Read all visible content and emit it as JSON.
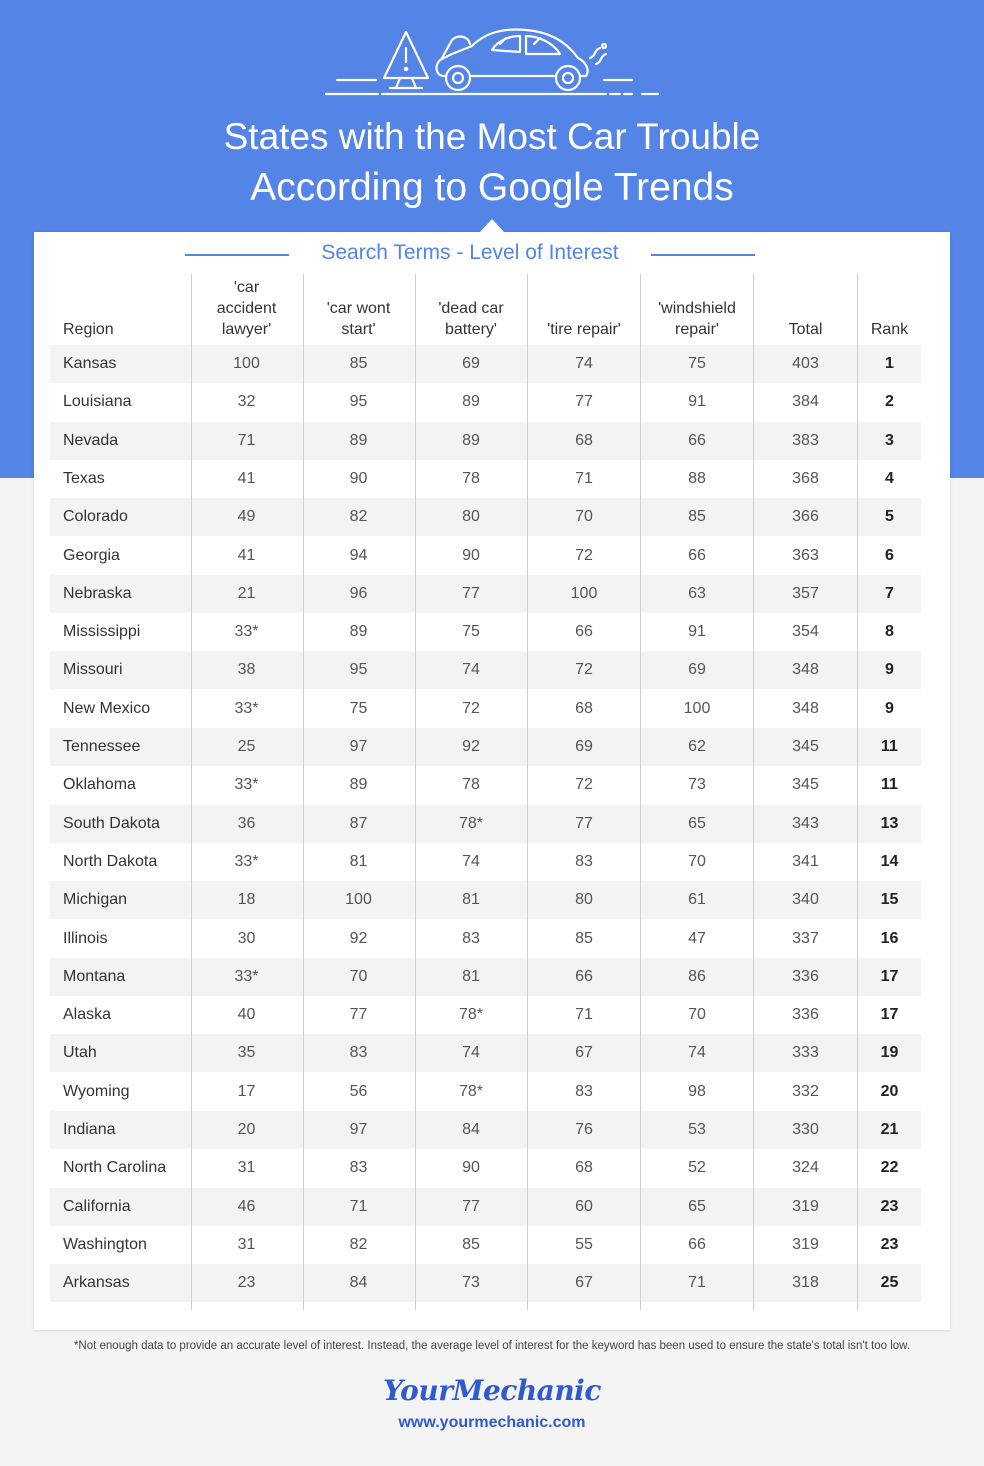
{
  "title": {
    "line1": "States with the Most Car Trouble",
    "line2": "According to Google Trends"
  },
  "illustration": {
    "icon": "broken-down-car-with-warning-triangle"
  },
  "colors": {
    "accent": "#5384e6",
    "logo": "#2f5bcc",
    "row_shade": "#f3f3f3",
    "background": "#f4f4f4"
  },
  "table": {
    "group_label": "Search Terms - Level of Interest",
    "headers": {
      "region": "Region",
      "car_accident_lawyer": [
        "'car",
        "accident",
        "lawyer'"
      ],
      "car_wont_start": [
        "'car wont",
        "start'"
      ],
      "dead_car_battery": [
        "'dead car",
        "battery'"
      ],
      "tire_repair": [
        "'tire repair'"
      ],
      "windshield_repair": [
        "'windshield",
        "repair'"
      ],
      "total": "Total",
      "rank": "Rank"
    },
    "rows": [
      [
        "Kansas",
        "100",
        "85",
        "69",
        "74",
        "75",
        "403",
        "1"
      ],
      [
        "Louisiana",
        "32",
        "95",
        "89",
        "77",
        "91",
        "384",
        "2"
      ],
      [
        "Nevada",
        "71",
        "89",
        "89",
        "68",
        "66",
        "383",
        "3"
      ],
      [
        "Texas",
        "41",
        "90",
        "78",
        "71",
        "88",
        "368",
        "4"
      ],
      [
        "Colorado",
        "49",
        "82",
        "80",
        "70",
        "85",
        "366",
        "5"
      ],
      [
        "Georgia",
        "41",
        "94",
        "90",
        "72",
        "66",
        "363",
        "6"
      ],
      [
        "Nebraska",
        "21",
        "96",
        "77",
        "100",
        "63",
        "357",
        "7"
      ],
      [
        "Mississippi",
        "33*",
        "89",
        "75",
        "66",
        "91",
        "354",
        "8"
      ],
      [
        "Missouri",
        "38",
        "95",
        "74",
        "72",
        "69",
        "348",
        "9"
      ],
      [
        "New Mexico",
        "33*",
        "75",
        "72",
        "68",
        "100",
        "348",
        "9"
      ],
      [
        "Tennessee",
        "25",
        "97",
        "92",
        "69",
        "62",
        "345",
        "11"
      ],
      [
        "Oklahoma",
        "33*",
        "89",
        "78",
        "72",
        "73",
        "345",
        "11"
      ],
      [
        "South Dakota",
        "36",
        "87",
        "78*",
        "77",
        "65",
        "343",
        "13"
      ],
      [
        "North Dakota",
        "33*",
        "81",
        "74",
        "83",
        "70",
        "341",
        "14"
      ],
      [
        "Michigan",
        "18",
        "100",
        "81",
        "80",
        "61",
        "340",
        "15"
      ],
      [
        "Illinois",
        "30",
        "92",
        "83",
        "85",
        "47",
        "337",
        "16"
      ],
      [
        "Montana",
        "33*",
        "70",
        "81",
        "66",
        "86",
        "336",
        "17"
      ],
      [
        "Alaska",
        "40",
        "77",
        "78*",
        "71",
        "70",
        "336",
        "17"
      ],
      [
        "Utah",
        "35",
        "83",
        "74",
        "67",
        "74",
        "333",
        "19"
      ],
      [
        "Wyoming",
        "17",
        "56",
        "78*",
        "83",
        "98",
        "332",
        "20"
      ],
      [
        "Indiana",
        "20",
        "97",
        "84",
        "76",
        "53",
        "330",
        "21"
      ],
      [
        "North Carolina",
        "31",
        "83",
        "90",
        "68",
        "52",
        "324",
        "22"
      ],
      [
        "California",
        "46",
        "71",
        "77",
        "60",
        "65",
        "319",
        "23"
      ],
      [
        "Washington",
        "31",
        "82",
        "85",
        "55",
        "66",
        "319",
        "23"
      ],
      [
        "Arkansas",
        "23",
        "84",
        "73",
        "67",
        "71",
        "318",
        "25"
      ]
    ]
  },
  "footnote": "*Not enough data to provide an accurate level of interest. Instead, the average level of interest for the keyword has been used to ensure the state's total isn't too low.",
  "brand": {
    "logo_text": "YourMechanic",
    "url": "www.yourmechanic.com"
  }
}
